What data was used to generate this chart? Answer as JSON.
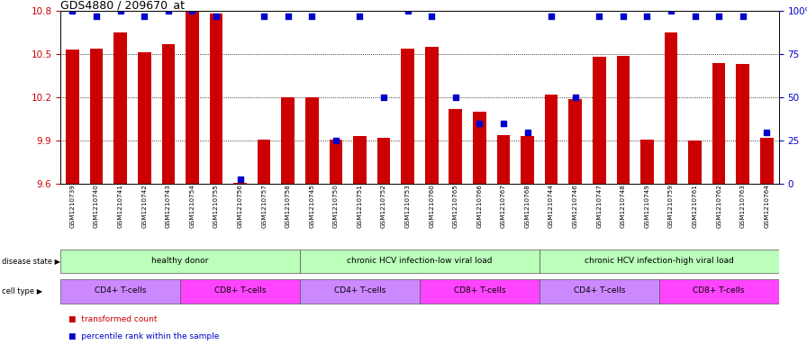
{
  "title": "GDS4880 / 209670_at",
  "samples": [
    "GSM1210739",
    "GSM1210740",
    "GSM1210741",
    "GSM1210742",
    "GSM1210743",
    "GSM1210754",
    "GSM1210755",
    "GSM1210756",
    "GSM1210757",
    "GSM1210758",
    "GSM1210745",
    "GSM1210750",
    "GSM1210751",
    "GSM1210752",
    "GSM1210753",
    "GSM1210760",
    "GSM1210765",
    "GSM1210766",
    "GSM1210767",
    "GSM1210768",
    "GSM1210744",
    "GSM1210746",
    "GSM1210747",
    "GSM1210748",
    "GSM1210749",
    "GSM1210759",
    "GSM1210761",
    "GSM1210762",
    "GSM1210763",
    "GSM1210764"
  ],
  "bar_values": [
    10.53,
    10.54,
    10.65,
    10.51,
    10.57,
    10.79,
    10.78,
    9.61,
    9.91,
    10.2,
    10.2,
    9.91,
    9.93,
    9.92,
    10.54,
    10.55,
    10.12,
    10.1,
    9.94,
    9.93,
    10.22,
    10.19,
    10.48,
    10.49,
    9.91,
    10.65,
    9.9,
    10.44,
    10.43,
    9.92
  ],
  "percentile_values": [
    100,
    97,
    100,
    97,
    100,
    100,
    97,
    3,
    97,
    97,
    97,
    25,
    97,
    50,
    100,
    97,
    50,
    35,
    35,
    30,
    97,
    50,
    97,
    97,
    97,
    100,
    97,
    97,
    97,
    30
  ],
  "ylim_left": [
    9.6,
    10.8
  ],
  "ylim_right": [
    0,
    100
  ],
  "yticks_left": [
    9.6,
    9.9,
    10.2,
    10.5,
    10.8
  ],
  "yticks_right": [
    0,
    25,
    50,
    75,
    100
  ],
  "bar_color": "#cc0000",
  "dot_color": "#0000cc",
  "disease_color": "#bbffbb",
  "cd4_color": "#cc88ff",
  "cd8_color": "#ff44ff",
  "disease_states": [
    {
      "label": "healthy donor",
      "start": 0,
      "end": 10
    },
    {
      "label": "chronic HCV infection-low viral load",
      "start": 10,
      "end": 20
    },
    {
      "label": "chronic HCV infection-high viral load",
      "start": 20,
      "end": 30
    }
  ],
  "cell_types": [
    {
      "label": "CD4+ T-cells",
      "start": 0,
      "end": 5,
      "type": "cd4"
    },
    {
      "label": "CD8+ T-cells",
      "start": 5,
      "end": 10,
      "type": "cd8"
    },
    {
      "label": "CD4+ T-cells",
      "start": 10,
      "end": 15,
      "type": "cd4"
    },
    {
      "label": "CD8+ T-cells",
      "start": 15,
      "end": 20,
      "type": "cd8"
    },
    {
      "label": "CD4+ T-cells",
      "start": 20,
      "end": 25,
      "type": "cd4"
    },
    {
      "label": "CD8+ T-cells",
      "start": 25,
      "end": 30,
      "type": "cd8"
    }
  ]
}
